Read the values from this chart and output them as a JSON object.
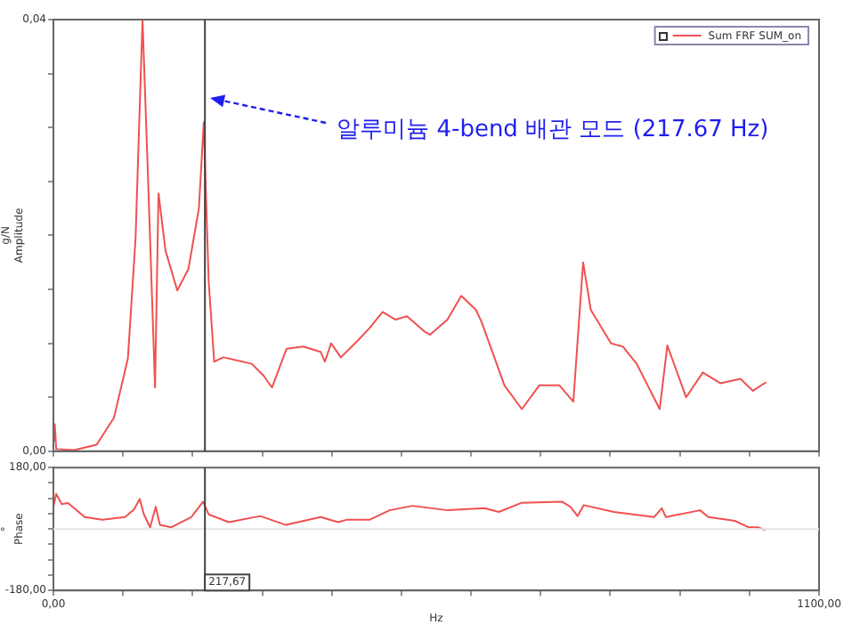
{
  "chart_data": [
    {
      "type": "line",
      "ylabel": "g/N\nAmplitude",
      "legend": "top right",
      "grid": false,
      "marker": "none",
      "line_style": "solid",
      "tick_labels": "y",
      "xlim": [
        0,
        1100
      ],
      "ylim": [
        0,
        0.04
      ],
      "xticks": [
        {
          "value": 0,
          "label": null
        },
        {
          "value": 100,
          "label": null
        },
        {
          "value": 200,
          "label": null
        },
        {
          "value": 300,
          "label": null
        },
        {
          "value": 400,
          "label": null
        },
        {
          "value": 500,
          "label": null
        },
        {
          "value": 600,
          "label": null
        },
        {
          "value": 700,
          "label": null
        },
        {
          "value": 800,
          "label": null
        },
        {
          "value": 900,
          "label": null
        },
        {
          "value": 1000,
          "label": null
        },
        {
          "value": 1100,
          "label": null
        }
      ],
      "yticks": [
        {
          "value": 0,
          "label": "0,00"
        },
        {
          "value": 0.005,
          "label": null
        },
        {
          "value": 0.01,
          "label": null
        },
        {
          "value": 0.015,
          "label": null
        },
        {
          "value": 0.02,
          "label": null
        },
        {
          "value": 0.025,
          "label": null
        },
        {
          "value": 0.03,
          "label": null
        },
        {
          "value": 0.035,
          "label": null
        },
        {
          "value": 0.04,
          "label": "0,04"
        }
      ],
      "ref_lines": [
        {
          "axis": "x",
          "value": 217.67,
          "label": null,
          "color": "#404040"
        }
      ],
      "annotations": [
        "알루미늄 4-bend 배관 모드 (217.67 Hz)"
      ],
      "series": [
        {
          "name": "Sum FRF SUM_on",
          "color": "#f05050",
          "x": [
            0,
            2,
            4,
            30,
            62,
            87,
            107,
            118,
            128,
            136,
            146,
            151,
            161,
            178,
            194,
            209,
            216,
            223,
            231,
            244,
            285,
            302,
            314,
            335,
            359,
            384,
            390,
            399,
            413,
            438,
            454,
            473,
            491,
            508,
            533,
            541,
            566,
            586,
            607,
            615,
            648,
            673,
            698,
            727,
            747,
            761,
            772,
            801,
            818,
            838,
            871,
            882,
            909,
            933,
            958,
            987,
            1005,
            1024
          ],
          "values": [
            0.001,
            0.0025,
            0.0002,
            0.0001,
            0.0006,
            0.0031,
            0.0086,
            0.0197,
            0.04,
            0.0252,
            0.0059,
            0.0239,
            0.0186,
            0.0149,
            0.0169,
            0.0225,
            0.0305,
            0.0158,
            0.0083,
            0.0087,
            0.0081,
            0.007,
            0.0059,
            0.0095,
            0.0097,
            0.0092,
            0.0083,
            0.01,
            0.0087,
            0.0103,
            0.0114,
            0.0129,
            0.0122,
            0.0125,
            0.0111,
            0.0108,
            0.0122,
            0.0144,
            0.0131,
            0.012,
            0.0061,
            0.0039,
            0.0061,
            0.0061,
            0.0046,
            0.0175,
            0.0131,
            0.01,
            0.0097,
            0.0081,
            0.0039,
            0.0098,
            0.005,
            0.0073,
            0.0063,
            0.0067,
            0.0056,
            0.0064
          ]
        }
      ]
    },
    {
      "type": "line",
      "xlabel": "Hz",
      "ylabel": "°\nPhase",
      "grid": false,
      "marker": "none",
      "line_style": "solid",
      "xlim": [
        0,
        1100
      ],
      "ylim": [
        -180,
        180
      ],
      "xticks": [
        {
          "value": 0,
          "label": "0,00"
        },
        {
          "value": 100,
          "label": null
        },
        {
          "value": 200,
          "label": null
        },
        {
          "value": 300,
          "label": null
        },
        {
          "value": 400,
          "label": null
        },
        {
          "value": 500,
          "label": null
        },
        {
          "value": 600,
          "label": null
        },
        {
          "value": 700,
          "label": null
        },
        {
          "value": 800,
          "label": null
        },
        {
          "value": 900,
          "label": null
        },
        {
          "value": 1000,
          "label": null
        },
        {
          "value": 1100,
          "label": "1100,00"
        }
      ],
      "yticks": [
        {
          "value": -180,
          "label": "-180,00"
        },
        {
          "value": -135,
          "label": null
        },
        {
          "value": -90,
          "label": null
        },
        {
          "value": -45,
          "label": null
        },
        {
          "value": 0,
          "label": null
        },
        {
          "value": 45,
          "label": null
        },
        {
          "value": 90,
          "label": null
        },
        {
          "value": 135,
          "label": null
        },
        {
          "value": 180,
          "label": "180,00"
        }
      ],
      "ref_lines": [
        {
          "axis": "y",
          "value": 0,
          "label": null,
          "color": "#e6e6e6"
        },
        {
          "axis": "x",
          "value": 217.67,
          "label": "217,67",
          "color": "#404040"
        }
      ],
      "series": [
        {
          "color": "#f05050",
          "x": [
            0,
            4,
            12,
            21,
            45,
            70,
            103,
            116,
            124,
            130,
            139,
            147,
            153,
            169,
            198,
            215,
            223,
            252,
            297,
            334,
            384,
            409,
            421,
            454,
            483,
            516,
            566,
            619,
            640,
            673,
            731,
            743,
            753,
            762,
            805,
            863,
            874,
            880,
            929,
            941,
            979,
            999,
            1012,
            1023
          ],
          "values": [
            65,
            103,
            73,
            76,
            35,
            27,
            35,
            58,
            88,
            43,
            5,
            65,
            12,
            5,
            35,
            80,
            43,
            20,
            38,
            12,
            35,
            20,
            27,
            27,
            55,
            68,
            55,
            61,
            50,
            77,
            80,
            65,
            38,
            70,
            50,
            35,
            61,
            35,
            55,
            35,
            24,
            5,
            5,
            -3
          ]
        }
      ]
    }
  ]
}
